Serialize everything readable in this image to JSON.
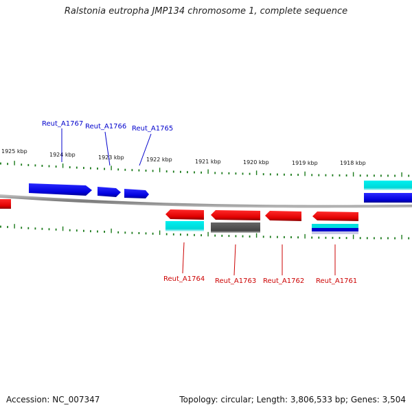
{
  "title": "Ralstonia eutropha JMP134 chromosome 1, complete sequence",
  "accession": "Accession: NC_007347",
  "topology": "Topology: circular; Length: 3,806,533 bp; Genes: 3,504",
  "colors": {
    "forward_gene": "#0000ee",
    "reverse_gene": "#ee0000",
    "rna_feature": "#00e5e5",
    "pseudo_gene": "#555555",
    "axis_tick": "#1a7a1a",
    "backbone": "#888888"
  },
  "scale_labels": [
    "1925 kbp",
    "1924 kbp",
    "1923 kbp",
    "1922 kbp",
    "1921 kbp",
    "1920 kbp",
    "1919 kbp",
    "1918 kbp"
  ],
  "forward_labels": [
    "Reut_A1767",
    "Reut_A1766",
    "Reut_A1765"
  ],
  "reverse_labels": [
    "Reut_A1764",
    "Reut_A1763",
    "Reut_A1762",
    "Reut_A1761"
  ]
}
